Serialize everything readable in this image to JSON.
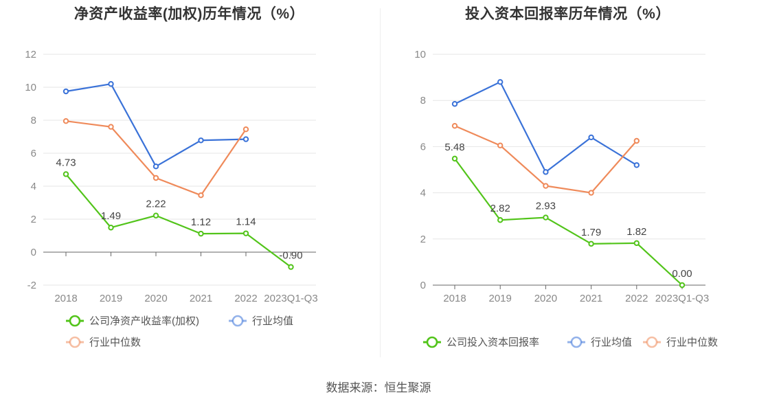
{
  "source": "数据来源：恒生聚源",
  "chart_data": [
    {
      "type": "line",
      "title": "净资产收益率(加权)历年情况（%）",
      "categories": [
        "2018",
        "2019",
        "2020",
        "2021",
        "2022",
        "2023Q1-Q3"
      ],
      "ylim": [
        -2,
        12
      ],
      "yticks": [
        -2,
        0,
        2,
        4,
        6,
        8,
        10,
        12
      ],
      "grid": true,
      "legend_placement": "bottom",
      "series": [
        {
          "name": "公司净资产收益率(加权)",
          "color": "#52c41a",
          "values": [
            4.73,
            1.49,
            2.22,
            1.12,
            1.14,
            -0.9
          ],
          "labels": [
            "4.73",
            "1.49",
            "2.22",
            "1.12",
            "1.14",
            "-0.90"
          ]
        },
        {
          "name": "行业均值",
          "color": "#3a72d8",
          "values": [
            9.75,
            10.2,
            5.2,
            6.78,
            6.85,
            null
          ]
        },
        {
          "name": "行业中位数",
          "color": "#ef8a5a",
          "values": [
            7.95,
            7.6,
            4.5,
            3.45,
            7.45,
            null
          ]
        }
      ]
    },
    {
      "type": "line",
      "title": "投入资本回报率历年情况（%）",
      "categories": [
        "2018",
        "2019",
        "2020",
        "2021",
        "2022",
        "2023Q1-Q3"
      ],
      "ylim": [
        0,
        10
      ],
      "yticks": [
        0,
        2,
        4,
        6,
        8,
        10
      ],
      "grid": true,
      "legend_placement": "bottom",
      "series": [
        {
          "name": "公司投入资本回报率",
          "color": "#52c41a",
          "values": [
            5.48,
            2.82,
            2.93,
            1.79,
            1.82,
            0.0
          ],
          "labels": [
            "5.48",
            "2.82",
            "2.93",
            "1.79",
            "1.82",
            "0.00"
          ]
        },
        {
          "name": "行业均值",
          "color": "#3a72d8",
          "values": [
            7.85,
            8.8,
            4.9,
            6.4,
            5.2,
            null
          ]
        },
        {
          "name": "行业中位数",
          "color": "#ef8a5a",
          "values": [
            6.9,
            6.05,
            4.3,
            4.0,
            6.25,
            null
          ]
        }
      ]
    }
  ]
}
